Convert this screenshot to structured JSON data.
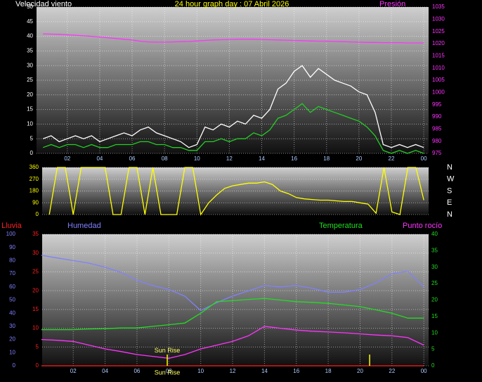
{
  "chart_data": [
    {
      "type": "line",
      "title": "24 hour graph day : 07 Abril 2026",
      "y_label": "Velocidad viento",
      "y2_label": "Presión",
      "title_color": "#ffff00",
      "y_label_color": "#ffffff",
      "y2_label_color": "#ff33ff",
      "x": [
        0.5,
        1,
        1.5,
        2,
        2.5,
        3,
        3.5,
        4,
        4.5,
        5,
        5.5,
        6,
        6.5,
        7,
        7.5,
        8,
        8.5,
        9,
        9.5,
        10,
        10.5,
        11,
        11.5,
        12,
        12.5,
        13,
        13.5,
        14,
        14.5,
        15,
        15.5,
        16,
        16.5,
        17,
        17.5,
        18,
        18.5,
        19,
        19.5,
        20,
        20.5,
        21,
        21.5,
        22,
        22.5,
        23,
        23.5,
        24
      ],
      "xlim": [
        0.1,
        24.3
      ],
      "xticks": [
        {
          "value": 2,
          "label": "02"
        },
        {
          "value": 4,
          "label": "04"
        },
        {
          "value": 6,
          "label": "06"
        },
        {
          "value": 8,
          "label": "08"
        },
        {
          "value": 10,
          "label": "10"
        },
        12,
        14,
        16,
        18,
        20,
        22,
        {
          "value": 24,
          "label": "00"
        }
      ],
      "xtick_color": "#aaccff",
      "ylim": [
        0,
        50
      ],
      "yticks": [
        0,
        5,
        10,
        15,
        20,
        25,
        30,
        35,
        40,
        45,
        50
      ],
      "ytick_color": "#ffffff",
      "y2lim": [
        975,
        1035
      ],
      "y2ticks": [
        975,
        980,
        985,
        990,
        995,
        1000,
        1005,
        1010,
        1015,
        1020,
        1025,
        1030,
        1035
      ],
      "y2tick_color": "#ff33ff",
      "grid": true,
      "series": [
        {
          "color": "#ffffff",
          "values": [
            5,
            6,
            4,
            5,
            6,
            5,
            6,
            4,
            5,
            6,
            7,
            6,
            8,
            9,
            7,
            6,
            5,
            4,
            2,
            3,
            9,
            8,
            10,
            9,
            11,
            10,
            13,
            12,
            15,
            22,
            24,
            28,
            30,
            26,
            29,
            27,
            25,
            24,
            23,
            21,
            20,
            14,
            3,
            2,
            3,
            2,
            3,
            2
          ]
        },
        {
          "color": "#22cc22",
          "values": [
            2,
            3,
            2,
            3,
            3,
            2,
            3,
            2,
            2,
            3,
            3,
            3,
            4,
            4,
            3,
            3,
            2,
            2,
            1,
            1,
            4,
            4,
            5,
            4,
            5,
            5,
            7,
            6,
            8,
            12,
            13,
            15,
            17,
            14,
            16,
            15,
            14,
            13,
            12,
            11,
            9,
            6,
            1,
            0,
            1,
            0,
            1,
            0
          ]
        },
        {
          "color": "#ff33ff",
          "axis": "y2",
          "values": [
            1024.0,
            1023.9,
            1023.8,
            1023.6,
            1023.4,
            1023.2,
            1023.0,
            1022.7,
            1022.4,
            1022.1,
            1021.8,
            1021.5,
            1021.0,
            1020.7,
            1020.6,
            1020.6,
            1020.7,
            1020.8,
            1020.9,
            1021.1,
            1021.3,
            1021.5,
            1021.6,
            1021.7,
            1021.8,
            1021.8,
            1021.8,
            1021.7,
            1021.6,
            1021.5,
            1021.4,
            1021.3,
            1021.2,
            1021.1,
            1021.0,
            1021.0,
            1020.9,
            1020.8,
            1020.7,
            1020.6,
            1020.5,
            1020.5,
            1020.4,
            1020.4,
            1020.4,
            1020.3,
            1020.3,
            1020.3
          ]
        }
      ]
    },
    {
      "type": "line",
      "x": [
        0.5,
        1,
        1.5,
        2,
        2.5,
        3,
        3.5,
        4,
        4.5,
        5,
        5.5,
        6,
        6.5,
        7,
        7.5,
        8,
        8.5,
        9,
        9.5,
        10,
        10.5,
        11,
        11.5,
        12,
        12.5,
        13,
        13.5,
        14,
        14.5,
        15,
        15.5,
        16,
        16.5,
        17,
        17.5,
        18,
        18.5,
        19,
        19.5,
        20,
        20.5,
        21,
        21.5,
        22,
        22.5,
        23,
        23.5,
        24
      ],
      "xlim": [
        0.05,
        24.3
      ],
      "ylim": [
        0,
        360
      ],
      "yticks": [
        0,
        90,
        180,
        270,
        360
      ],
      "ytick_color": "#ffff00",
      "y2lim": [
        0,
        360
      ],
      "y2ticks": [
        {
          "value": 360,
          "label": "N"
        },
        {
          "value": 270,
          "label": "W"
        },
        {
          "value": 180,
          "label": "S"
        },
        {
          "value": 90,
          "label": "E"
        },
        {
          "value": 0,
          "label": "N"
        }
      ],
      "y2tick_color": "#ffffff",
      "grid": true,
      "series": [
        {
          "color": "#ffff00",
          "values": [
            0,
            360,
            360,
            0,
            360,
            360,
            360,
            360,
            0,
            0,
            360,
            360,
            0,
            360,
            0,
            0,
            0,
            360,
            360,
            0,
            90,
            150,
            200,
            220,
            230,
            240,
            240,
            250,
            230,
            180,
            160,
            130,
            120,
            115,
            110,
            110,
            105,
            100,
            100,
            90,
            80,
            10,
            360,
            20,
            0,
            360,
            360,
            110
          ]
        }
      ]
    },
    {
      "type": "line",
      "x": [
        0,
        1,
        2,
        3,
        4,
        5,
        6,
        7,
        8,
        9,
        10,
        11,
        12,
        13,
        14,
        15,
        16,
        17,
        18,
        19,
        20,
        21,
        22,
        23,
        24
      ],
      "xlim": [
        0.05,
        24.3
      ],
      "xticks": [
        {
          "value": 2,
          "label": "02"
        },
        {
          "value": 4,
          "label": "04"
        },
        {
          "value": 6,
          "label": "06"
        },
        {
          "value": 8,
          "label": "08"
        },
        {
          "value": 10,
          "label": "10"
        },
        12,
        14,
        16,
        18,
        20,
        22,
        {
          "value": 24,
          "label": "00"
        }
      ],
      "xtick_color": "#aaccff",
      "ylim": [
        0,
        35
      ],
      "yticks": [
        0,
        5,
        10,
        15,
        20,
        25,
        30,
        35
      ],
      "ytick_color": "#ff2020",
      "y2lim": [
        0,
        40
      ],
      "y2ticks": [
        0,
        5,
        10,
        15,
        20,
        25,
        30,
        35,
        40
      ],
      "y2tick_color": "#22dd22",
      "y3lim": [
        0,
        100
      ],
      "y3ticks": [
        0,
        10,
        20,
        30,
        40,
        50,
        60,
        70,
        80,
        90,
        100
      ],
      "y3tick_color": "#8080ff",
      "grid": true,
      "series": [
        {
          "name": "Lluvia",
          "color": "#ff2020",
          "values": [
            0,
            0,
            0,
            0,
            0,
            0,
            0,
            0,
            0,
            0,
            0,
            0,
            0,
            0,
            0,
            0,
            0,
            0,
            0,
            0,
            0,
            0,
            0,
            0,
            0
          ]
        },
        {
          "name": "Humedad",
          "color": "#8080ff",
          "axis": "y3",
          "values": [
            84,
            82,
            80,
            78,
            75,
            71,
            65,
            61,
            58,
            53,
            42,
            48,
            53,
            57,
            61,
            60,
            61,
            59,
            56,
            56,
            58,
            63,
            70,
            72,
            60
          ]
        },
        {
          "name": "Temperatura",
          "color": "#22dd22",
          "axis": "y2",
          "values": [
            11,
            11,
            11,
            11.2,
            11.3,
            11.5,
            11.5,
            12,
            12.5,
            13,
            16,
            19.5,
            19.8,
            20.2,
            20.5,
            20,
            19.5,
            19.3,
            19,
            18.5,
            18,
            17,
            16,
            14.5,
            14.5
          ]
        },
        {
          "name": "Punto rocío",
          "color": "#ff33ff",
          "values": [
            7,
            6.8,
            6.5,
            5.5,
            4.5,
            3.8,
            3,
            2.5,
            2,
            3,
            4.5,
            5.5,
            6.5,
            8,
            10.5,
            10,
            9.5,
            9.2,
            9,
            8.8,
            8.5,
            8.2,
            8,
            7.5,
            5.5
          ]
        }
      ],
      "markers": {
        "x": [
          7.9,
          20.6
        ],
        "height": 3,
        "color": "#ffff00"
      },
      "annotations": [
        {
          "text": "Sun Rise",
          "x": 7.9,
          "y": 4
        },
        {
          "text": "Sun Rise",
          "x": 7.9,
          "pos": "below"
        }
      ]
    }
  ]
}
